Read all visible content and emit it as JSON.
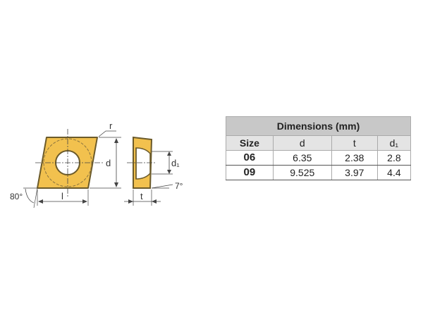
{
  "diagram": {
    "labels": {
      "r": "r",
      "d": "d",
      "l": "l",
      "d1": "d₁",
      "t": "t",
      "angle_80": "80°",
      "angle_7": "7°"
    },
    "insert_color": "#f2c14e"
  },
  "table": {
    "title": "Dimensions (mm)",
    "headers": [
      "Size",
      "d",
      "t",
      "d₁"
    ],
    "rows": [
      [
        "06",
        "6.35",
        "2.38",
        "2.8"
      ],
      [
        "09",
        "9.525",
        "3.97",
        "4.4"
      ]
    ]
  }
}
